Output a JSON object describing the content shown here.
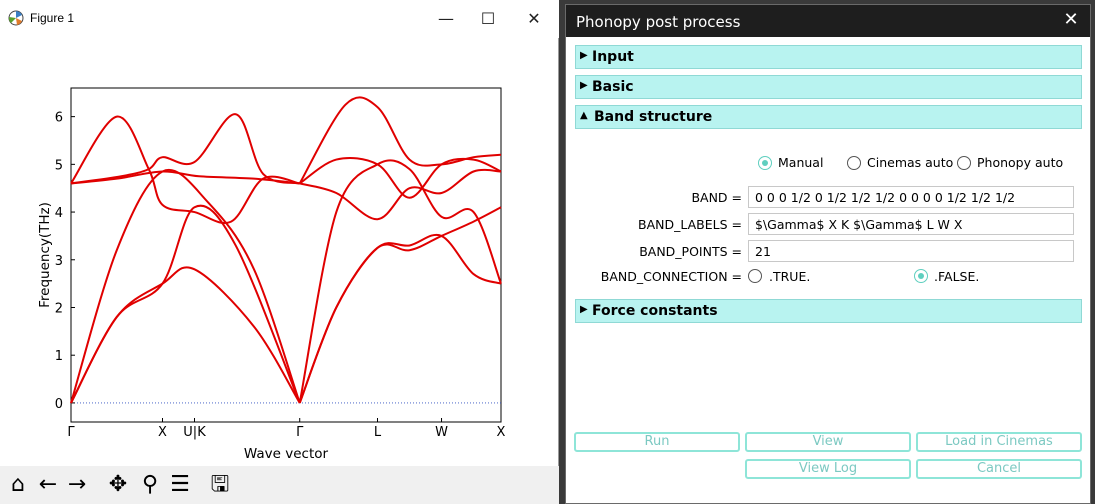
{
  "figure_window": {
    "title": "Figure 1",
    "controls": {
      "minimize": "—",
      "maximize": "☐",
      "close": "✕"
    },
    "toolbar": [
      "home",
      "back",
      "forward",
      "pan",
      "zoom",
      "configure",
      "save"
    ]
  },
  "chart_data": {
    "type": "line",
    "title": "",
    "xlabel": "Wave vector",
    "ylabel": "Frequency(THz)",
    "ylim": [
      -0.4,
      6.6
    ],
    "xlim": [
      0,
      4.7
    ],
    "yticks": [
      0,
      1,
      2,
      3,
      4,
      5,
      6
    ],
    "xticks": [
      {
        "label": "Γ",
        "x": 0
      },
      {
        "label": "X",
        "x": 1.0
      },
      {
        "label": "U|K",
        "x": 1.35
      },
      {
        "label": "Γ",
        "x": 2.5
      },
      {
        "label": "L",
        "x": 3.35
      },
      {
        "label": "W",
        "x": 4.05
      },
      {
        "label": "X",
        "x": 4.7
      }
    ],
    "line_color": "#e00000",
    "zero_line": true,
    "series": [
      {
        "x": [
          0,
          0.5,
          1.0,
          1.35,
          2.0,
          2.5
        ],
        "y": [
          0,
          1.8,
          2.5,
          2.8,
          1.6,
          0
        ]
      },
      {
        "x": [
          0,
          0.5,
          1.0,
          1.35,
          1.8,
          2.5
        ],
        "y": [
          0,
          1.8,
          2.5,
          4.1,
          3.3,
          0
        ]
      },
      {
        "x": [
          0,
          0.5,
          1.0,
          1.5,
          2.0,
          2.5
        ],
        "y": [
          0,
          3.2,
          4.85,
          4.2,
          2.8,
          0
        ]
      },
      {
        "x": [
          0,
          0.5,
          0.85,
          1.0,
          1.35,
          1.75,
          2.1,
          2.5
        ],
        "y": [
          4.6,
          6.0,
          4.9,
          4.15,
          4.0,
          3.8,
          4.7,
          4.6
        ]
      },
      {
        "x": [
          0,
          0.55,
          0.85,
          1.0,
          1.35,
          1.8,
          2.1,
          2.5
        ],
        "y": [
          4.6,
          4.75,
          4.9,
          5.15,
          5.05,
          6.05,
          4.8,
          4.6
        ]
      },
      {
        "x": [
          0,
          0.5,
          1.0,
          1.4,
          2.0,
          2.5
        ],
        "y": [
          4.6,
          4.7,
          4.85,
          4.75,
          4.7,
          4.6
        ]
      },
      {
        "x": [
          2.5,
          2.9,
          3.35,
          3.7,
          4.05,
          4.4,
          4.7
        ],
        "y": [
          0,
          2.0,
          3.25,
          3.3,
          3.5,
          2.7,
          2.5
        ]
      },
      {
        "x": [
          2.5,
          2.9,
          3.35,
          3.7,
          4.05,
          4.4,
          4.7
        ],
        "y": [
          0,
          2.0,
          3.25,
          3.2,
          3.5,
          3.8,
          4.1
        ]
      },
      {
        "x": [
          2.5,
          2.9,
          3.35,
          3.7,
          4.05,
          4.4,
          4.7
        ],
        "y": [
          0,
          4.0,
          5.0,
          4.9,
          3.9,
          4.0,
          2.5
        ]
      },
      {
        "x": [
          2.5,
          2.9,
          3.35,
          3.7,
          4.05,
          4.4,
          4.7
        ],
        "y": [
          4.6,
          4.4,
          3.85,
          4.5,
          4.4,
          4.85,
          4.85
        ]
      },
      {
        "x": [
          2.5,
          2.9,
          3.35,
          3.7,
          4.05,
          4.4,
          4.7
        ],
        "y": [
          4.6,
          5.1,
          5.0,
          4.3,
          5.0,
          5.1,
          4.85
        ]
      },
      {
        "x": [
          2.5,
          3.0,
          3.35,
          3.7,
          4.05,
          4.4,
          4.7
        ],
        "y": [
          4.6,
          6.25,
          6.2,
          5.1,
          5.0,
          5.15,
          5.2
        ]
      }
    ]
  },
  "dialog": {
    "title": "Phonopy post process",
    "close": "✕",
    "sections": {
      "input": {
        "label": "Input",
        "tri": "▶"
      },
      "basic": {
        "label": "Basic",
        "tri": "▶"
      },
      "band": {
        "label": "Band structure",
        "tri": "▲"
      },
      "force": {
        "label": "Force constants",
        "tri": "▶"
      }
    },
    "mode": {
      "options": [
        "Manual",
        "Cinemas auto",
        "Phonopy auto"
      ],
      "selected": "Manual"
    },
    "fields": {
      "band_label": "BAND =",
      "band_value": "0 0 0 1/2 0 1/2 1/2 1/2 0 0 0 0 1/2 1/2 1/2",
      "band_labels_label": "BAND_LABELS =",
      "band_labels_value": "$\\Gamma$  X   K  $\\Gamma$  L W X",
      "band_points_label": "BAND_POINTS =",
      "band_points_value": "21",
      "band_connection_label": "BAND_CONNECTION =",
      "band_connection_options": [
        ".TRUE.",
        ".FALSE."
      ],
      "band_connection_selected": ".FALSE."
    },
    "buttons": {
      "run": "Run",
      "view": "View",
      "load": "Load in Cinemas",
      "view_log": "View Log",
      "cancel": "Cancel"
    },
    "accent_color": "#5fcfbf",
    "section_color": "#b8f3f0"
  }
}
